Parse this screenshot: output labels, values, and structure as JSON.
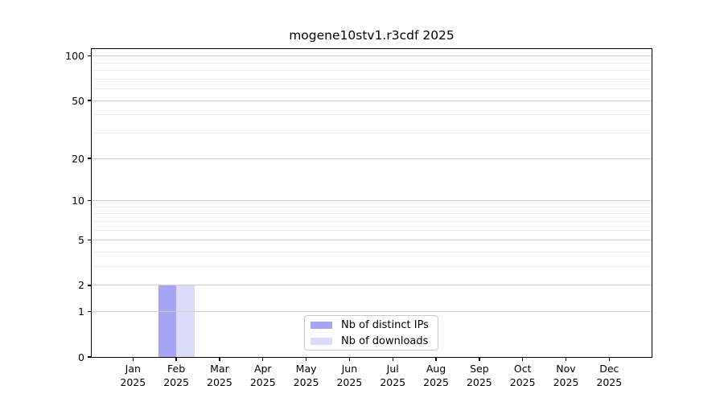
{
  "title": "mogene10stv1.r3cdf 2025",
  "chart_data": {
    "type": "bar",
    "title": "mogene10stv1.r3cdf 2025",
    "categories": [
      "Jan",
      "Feb",
      "Mar",
      "Apr",
      "May",
      "Jun",
      "Jul",
      "Aug",
      "Sep",
      "Oct",
      "Nov",
      "Dec"
    ],
    "category_year": "2025",
    "series": [
      {
        "name": "Nb of distinct IPs",
        "color": "#a5a5f3",
        "values": [
          0,
          2,
          0,
          0,
          0,
          0,
          0,
          0,
          0,
          0,
          0,
          0
        ]
      },
      {
        "name": "Nb of downloads",
        "color": "#dadaf9",
        "values": [
          0,
          2,
          0,
          0,
          0,
          0,
          0,
          0,
          0,
          0,
          0,
          0
        ]
      }
    ],
    "yscale": "log1p",
    "ylim": [
      0,
      110
    ],
    "yticks": [
      0,
      1,
      2,
      5,
      10,
      20,
      50,
      100
    ],
    "yticks_minor": [
      3,
      4,
      6,
      7,
      8,
      9,
      30,
      40,
      60,
      70,
      80,
      90
    ],
    "grid": "horizontal",
    "legend_position": "lower center",
    "background": "#ffffff"
  },
  "colors": {
    "spine": "#000000",
    "grid_major": "#cfcfcf",
    "grid_minor": "#ededed",
    "legend_border": "#c9c9c9",
    "text": "#000000"
  }
}
